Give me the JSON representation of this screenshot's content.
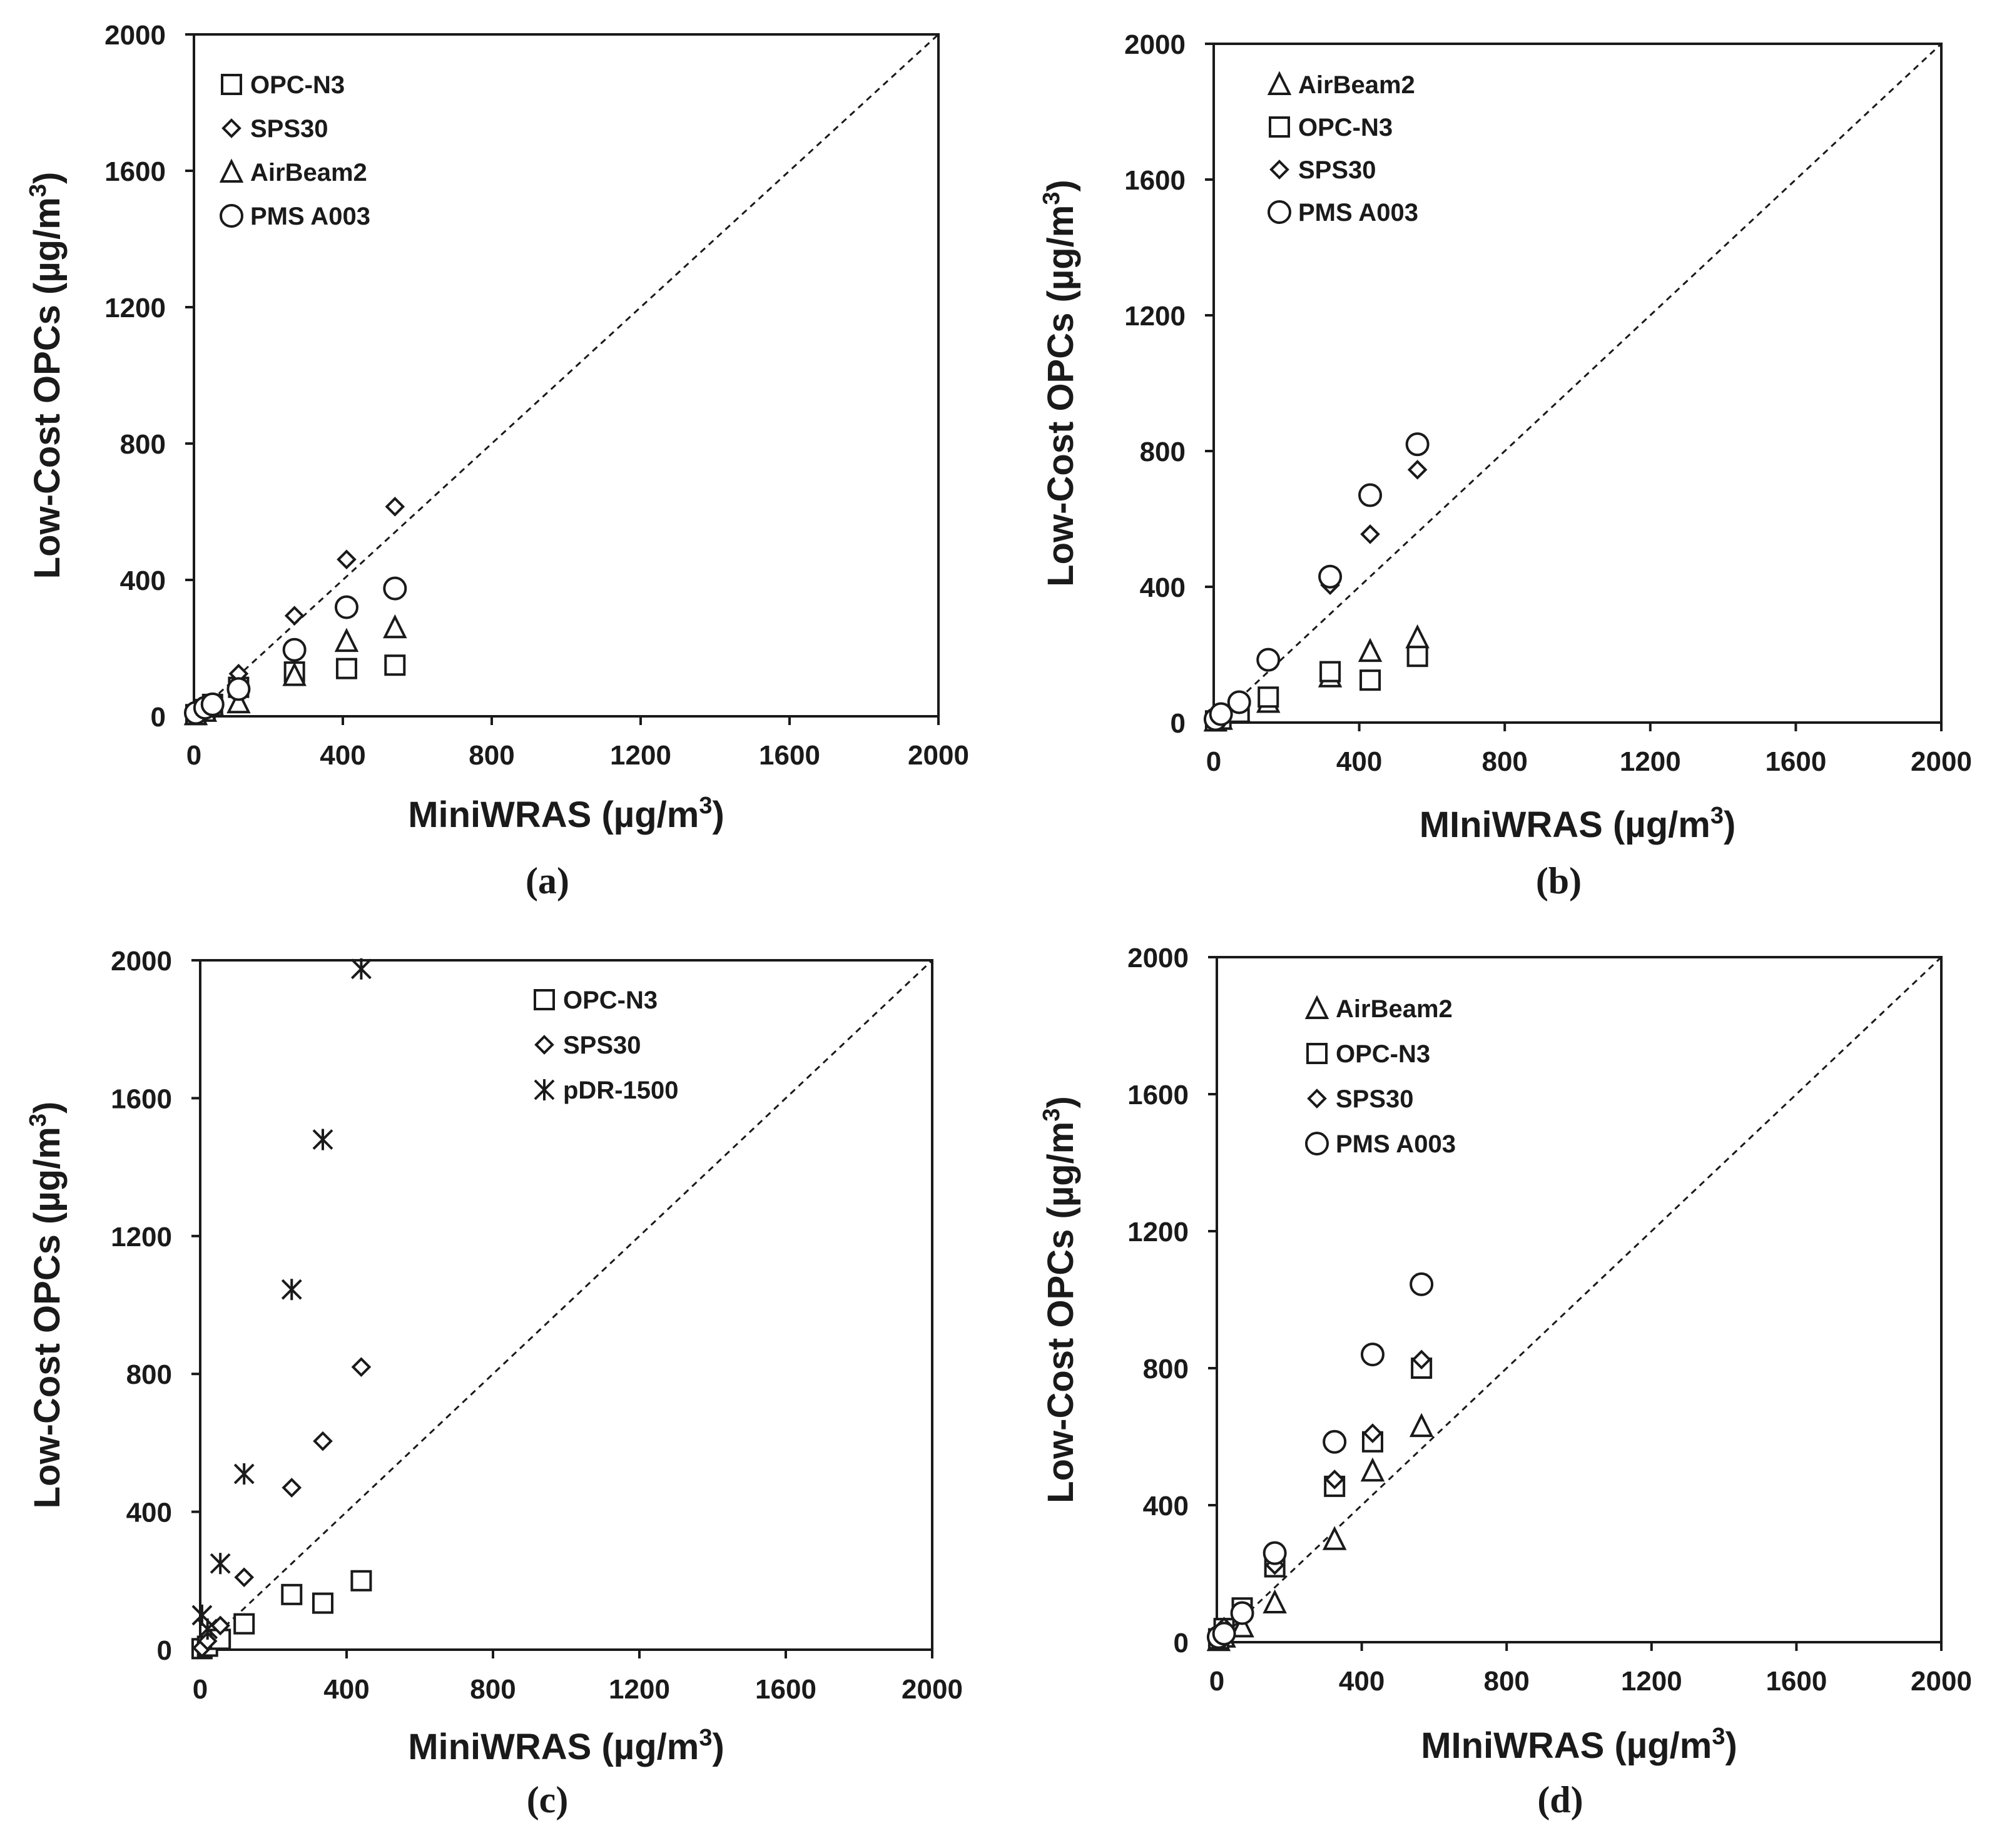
{
  "chart_data": [
    {
      "type": "scatter",
      "label": "(a)",
      "xlabel": "MiniWRAS (µg/m",
      "ylabel": "Low-Cost OPCs (µg/m",
      "unit_sup": "3",
      "xlim": [
        0,
        2000
      ],
      "ylim": [
        0,
        2000
      ],
      "xticks": [
        "0",
        "400",
        "800",
        "1200",
        "1600",
        "2000"
      ],
      "yticks": [
        "0",
        "400",
        "800",
        "1200",
        "1600",
        "2000"
      ],
      "reference_line": "1:1",
      "legend_position": "top-left",
      "series": [
        {
          "name": "OPC-N3",
          "marker": "square",
          "x": [
            5,
            30,
            50,
            120,
            270,
            410,
            540
          ],
          "y": [
            5,
            20,
            35,
            85,
            130,
            140,
            150
          ]
        },
        {
          "name": "SPS30",
          "marker": "diamond",
          "x": [
            5,
            30,
            50,
            120,
            270,
            410,
            540
          ],
          "y": [
            8,
            30,
            40,
            125,
            295,
            460,
            615
          ]
        },
        {
          "name": "AirBeam2",
          "marker": "triangle",
          "x": [
            5,
            30,
            50,
            120,
            270,
            410,
            540
          ],
          "y": [
            5,
            15,
            30,
            40,
            120,
            220,
            260
          ]
        },
        {
          "name": "PMS A003",
          "marker": "circle",
          "x": [
            5,
            30,
            50,
            120,
            270,
            410,
            540
          ],
          "y": [
            10,
            25,
            35,
            80,
            195,
            320,
            375
          ]
        }
      ]
    },
    {
      "type": "scatter",
      "label": "(b)",
      "xlabel": "MIniWRAS (µg/m",
      "ylabel": "Low-Cost OPCs (µg/m",
      "unit_sup": "3",
      "xlim": [
        0,
        2000
      ],
      "ylim": [
        0,
        2000
      ],
      "xticks": [
        "0",
        "400",
        "800",
        "1200",
        "1600",
        "2000"
      ],
      "yticks": [
        "0",
        "400",
        "800",
        "1200",
        "1600",
        "2000"
      ],
      "reference_line": "1:1",
      "legend_position": "top-left",
      "series": [
        {
          "name": "AirBeam2",
          "marker": "triangle",
          "x": [
            5,
            20,
            70,
            150,
            320,
            430,
            560
          ],
          "y": [
            5,
            10,
            30,
            60,
            135,
            210,
            250
          ]
        },
        {
          "name": "OPC-N3",
          "marker": "square",
          "x": [
            5,
            20,
            70,
            150,
            320,
            430,
            560
          ],
          "y": [
            5,
            10,
            30,
            75,
            150,
            125,
            195
          ]
        },
        {
          "name": "SPS30",
          "marker": "diamond",
          "x": [
            5,
            20,
            70,
            150,
            320,
            430,
            560
          ],
          "y": [
            8,
            20,
            55,
            180,
            405,
            555,
            745
          ]
        },
        {
          "name": "PMS A003",
          "marker": "circle",
          "x": [
            5,
            20,
            70,
            150,
            320,
            430,
            560
          ],
          "y": [
            10,
            25,
            60,
            185,
            430,
            670,
            820
          ]
        }
      ]
    },
    {
      "type": "scatter",
      "label": "(c)",
      "xlabel": "MiniWRAS (µg/m",
      "ylabel": "Low-Cost OPCs (µg/m",
      "unit_sup": "3",
      "xlim": [
        0,
        2000
      ],
      "ylim": [
        0,
        2000
      ],
      "xticks": [
        "0",
        "400",
        "800",
        "1200",
        "1600",
        "2000"
      ],
      "yticks": [
        "0",
        "400",
        "800",
        "1200",
        "1600",
        "2000"
      ],
      "reference_line": "1:1",
      "legend_position": "top-right",
      "series": [
        {
          "name": "OPC-N3",
          "marker": "square",
          "x": [
            5,
            20,
            55,
            120,
            250,
            335,
            440
          ],
          "y": [
            3,
            10,
            30,
            75,
            160,
            135,
            200
          ]
        },
        {
          "name": "SPS30",
          "marker": "diamond",
          "x": [
            5,
            20,
            55,
            120,
            250,
            335,
            440
          ],
          "y": [
            5,
            25,
            70,
            210,
            470,
            605,
            820
          ]
        },
        {
          "name": "pDR-1500",
          "marker": "asterisk",
          "x": [
            5,
            20,
            55,
            120,
            250,
            335,
            440
          ],
          "y": [
            100,
            60,
            250,
            510,
            1045,
            1480,
            1975
          ]
        }
      ]
    },
    {
      "type": "scatter",
      "label": "(d)",
      "xlabel": "MIniWRAS (µg/m",
      "ylabel": "Low-Cost OPCs (µg/m",
      "unit_sup": "3",
      "xlim": [
        0,
        2000
      ],
      "ylim": [
        0,
        2000
      ],
      "xticks": [
        "0",
        "400",
        "800",
        "1200",
        "1600",
        "2000"
      ],
      "yticks": [
        "0",
        "400",
        "800",
        "1200",
        "1600",
        "2000"
      ],
      "reference_line": "1:1",
      "legend_position": "top-left",
      "series": [
        {
          "name": "AirBeam2",
          "marker": "triangle",
          "x": [
            5,
            20,
            70,
            160,
            325,
            430,
            565
          ],
          "y": [
            5,
            15,
            45,
            115,
            300,
            500,
            630
          ]
        },
        {
          "name": "OPC-N3",
          "marker": "square",
          "x": [
            5,
            20,
            70,
            160,
            325,
            430,
            565
          ],
          "y": [
            10,
            40,
            100,
            220,
            455,
            585,
            800
          ]
        },
        {
          "name": "SPS30",
          "marker": "diamond",
          "x": [
            5,
            20,
            70,
            160,
            325,
            430,
            565
          ],
          "y": [
            10,
            45,
            90,
            225,
            475,
            610,
            825
          ]
        },
        {
          "name": "PMS A003",
          "marker": "circle",
          "x": [
            5,
            20,
            70,
            160,
            325,
            430,
            565
          ],
          "y": [
            15,
            25,
            85,
            260,
            585,
            840,
            1045
          ]
        }
      ]
    }
  ]
}
